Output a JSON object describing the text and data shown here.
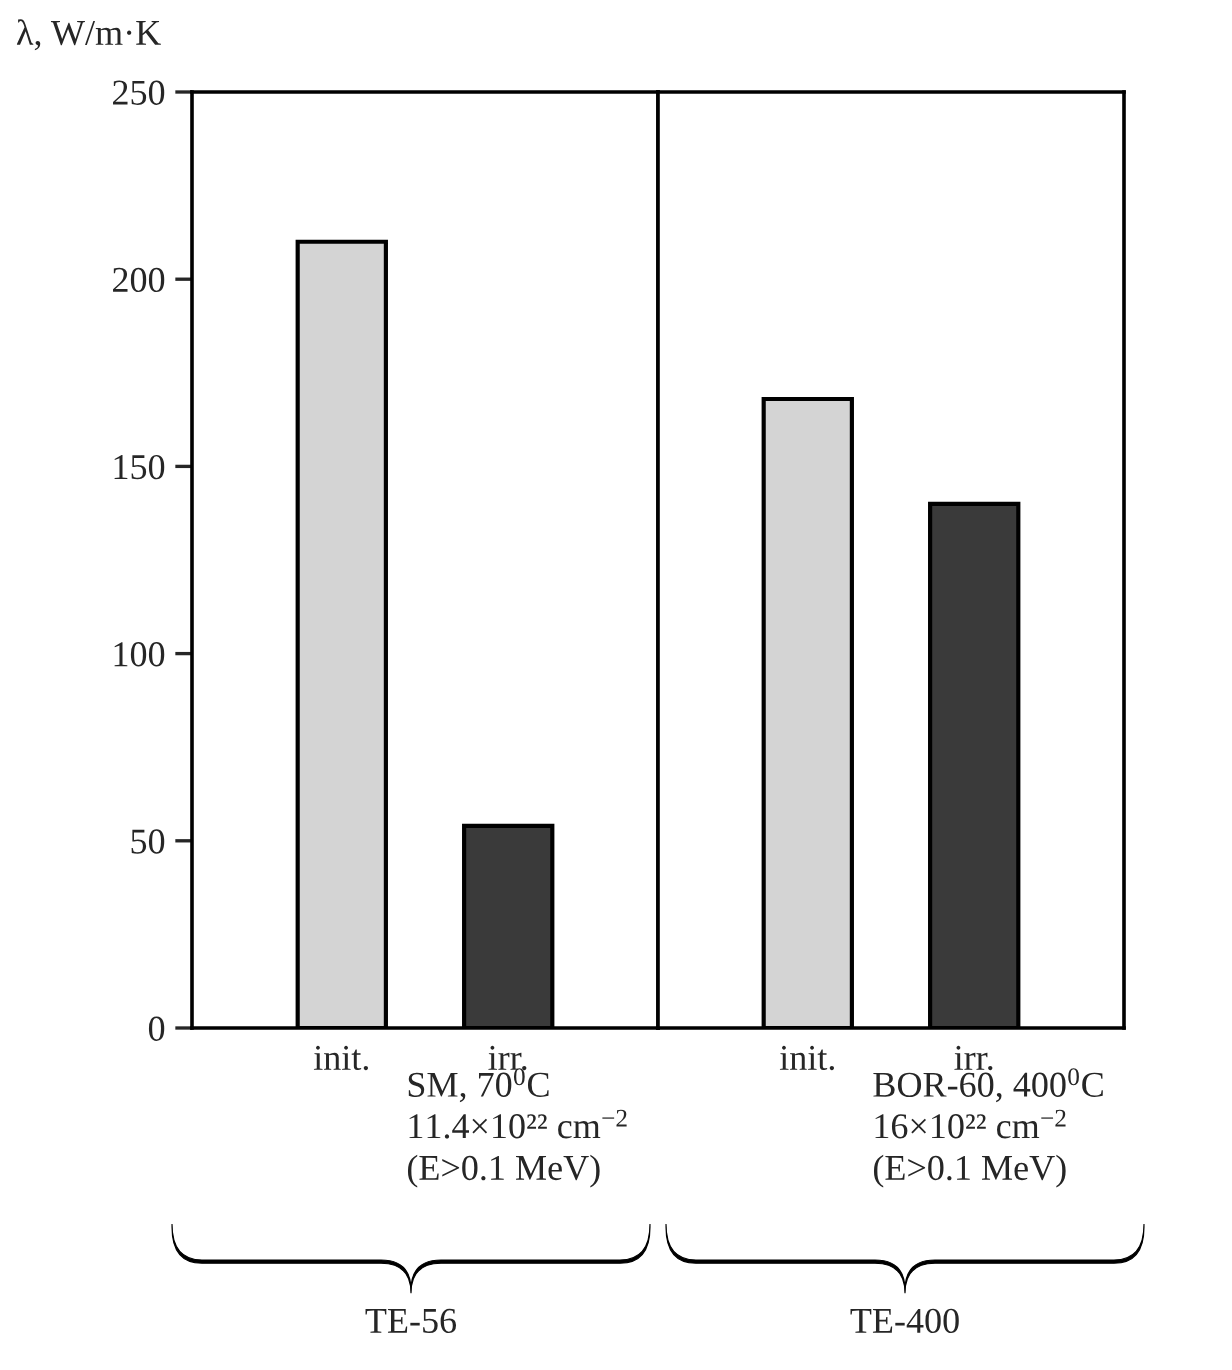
{
  "chart_data": [
    {
      "type": "bar",
      "ylabel": "λ, W/m·K",
      "categories": [
        "init.",
        "irr."
      ],
      "values": [
        210,
        54
      ],
      "colors": [
        "#d4d4d4",
        "#3a3a3a"
      ],
      "ylim": [
        0,
        250
      ],
      "yticks": [
        0,
        50,
        100,
        150,
        200,
        250
      ],
      "grid": false,
      "annotations": [
        "SM, 70$^{0}$C\n11.4×10²² cm$^{−2}$\n(E>0.1 MeV)",
        "TE-56"
      ]
    },
    {
      "type": "bar",
      "categories": [
        "init.",
        "irr."
      ],
      "values": [
        168,
        140
      ],
      "colors": [
        "#d4d4d4",
        "#3a3a3a"
      ],
      "ylim": [
        0,
        250
      ],
      "tick_labels": "x",
      "grid": false,
      "annotations": [
        "BOR-60, 400$^{0}$C\n16×10²² cm$^{−2}$\n(E>0.1 MeV)",
        "TE-400"
      ]
    }
  ]
}
